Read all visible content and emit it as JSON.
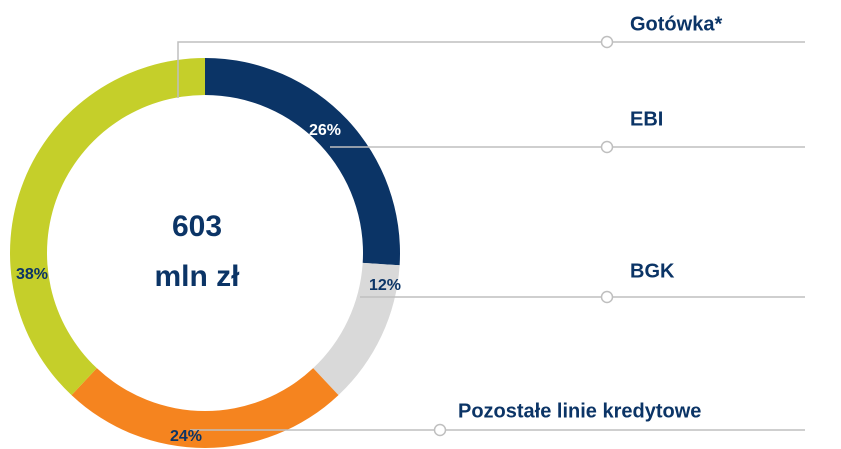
{
  "chart_data": {
    "type": "donut",
    "categories": [
      "EBI",
      "BGK",
      "Pozostałe linie kredytowe",
      "Gotówka*"
    ],
    "values": [
      26,
      12,
      24,
      38
    ],
    "value_labels": [
      "26%",
      "12%",
      "24%",
      "38%"
    ],
    "colors": [
      "#0b3466",
      "#d9d9d9",
      "#f5841f",
      "#c5cf2a"
    ],
    "center_text": [
      "603",
      "mln zł"
    ]
  }
}
